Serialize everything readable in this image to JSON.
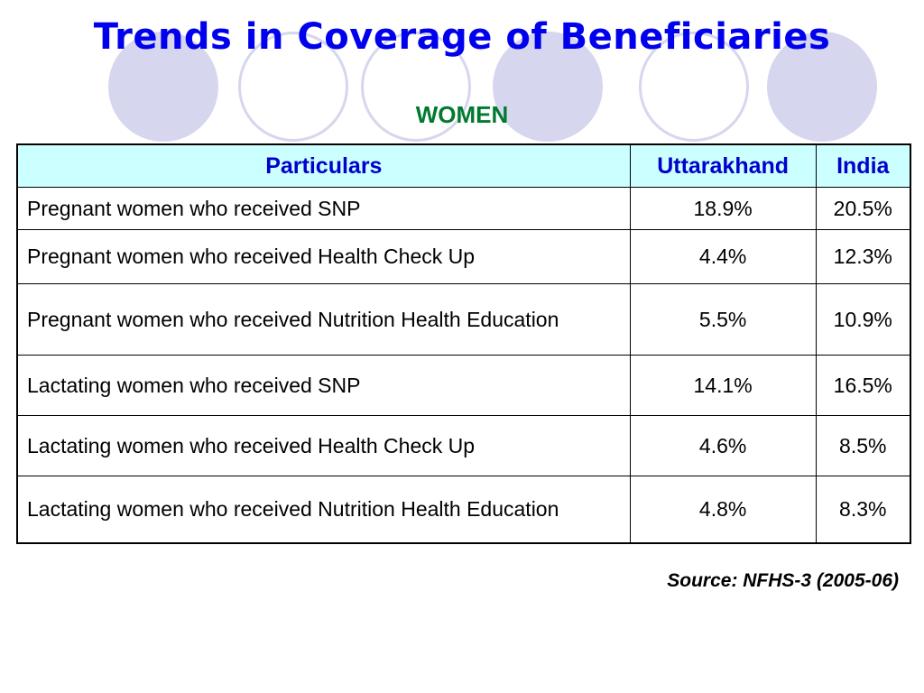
{
  "slide": {
    "title": "Trends in Coverage of Beneficiaries",
    "subtitle": "WOMEN",
    "source": "Source: NFHS-3 (2005-06)"
  },
  "table": {
    "headers": [
      "Particulars",
      "Uttarakhand",
      "India"
    ],
    "rows": [
      {
        "particular": "Pregnant women who received SNP",
        "uttarakhand": "18.9%",
        "india": "20.5%"
      },
      {
        "particular": "Pregnant women who received Health Check Up",
        "uttarakhand": "4.4%",
        "india": "12.3%"
      },
      {
        "particular": "Pregnant women who received Nutrition Health Education",
        "uttarakhand": "5.5%",
        "india": "10.9%"
      },
      {
        "particular": "Lactating women who received SNP",
        "uttarakhand": "14.1%",
        "india": "16.5%"
      },
      {
        "particular": "Lactating women who received Health Check Up",
        "uttarakhand": "4.6%",
        "india": "8.5%"
      },
      {
        "particular": "Lactating women who received Nutrition Health Education",
        "uttarakhand": "4.8%",
        "india": "8.3%"
      }
    ]
  },
  "colors": {
    "title": "#0000ee",
    "subtitle": "#007a2e",
    "header_bg": "#ccffff",
    "header_text": "#0000cc",
    "circle": "#d6d6ee"
  }
}
